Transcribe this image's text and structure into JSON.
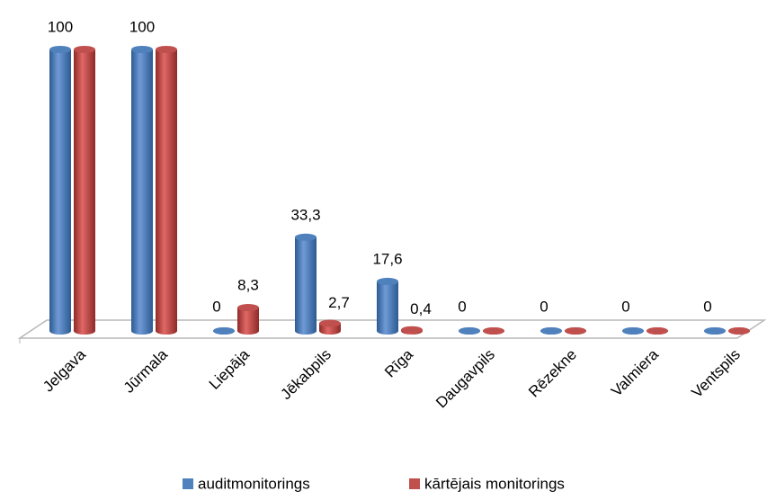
{
  "chart_data": {
    "type": "bar3d",
    "categories": [
      "Jelgava",
      "Jūrmala",
      "Liepāja",
      "Jēkabpils",
      "Rīga",
      "Daugavpils",
      "Rēzekne",
      "Valmiera",
      "Ventspils"
    ],
    "series": [
      {
        "name": "auditmonitorings",
        "color": "#4f81bd",
        "values": [
          100,
          100,
          0,
          33.3,
          17.6,
          0,
          0,
          0,
          0
        ],
        "value_labels": [
          "100",
          "100",
          "0",
          "33,3",
          "17,6",
          "0",
          "0",
          "0",
          "0"
        ]
      },
      {
        "name": "kārtējais monitorings",
        "color": "#c0504d",
        "values": [
          100,
          100,
          8.3,
          2.7,
          0.4,
          0,
          0,
          0,
          0
        ],
        "value_labels": [
          "",
          "",
          "8,3",
          "2,7",
          "0,4",
          "",
          "",
          "",
          ""
        ]
      }
    ],
    "ylim": [
      0,
      100
    ]
  }
}
